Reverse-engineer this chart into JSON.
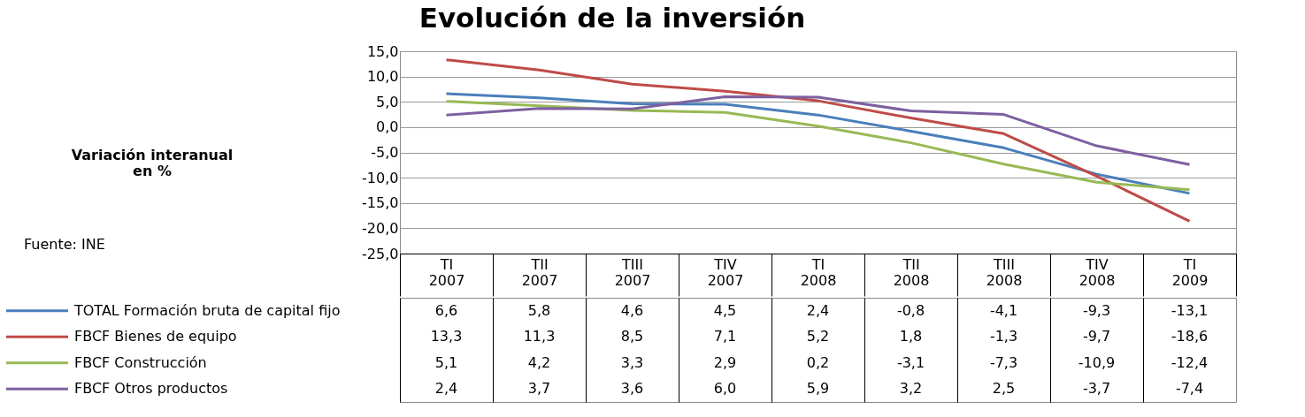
{
  "chart_data": {
    "type": "line",
    "title": "Evolución de la inversión",
    "annotations": [
      "Variación interanual en %",
      "Fuente: INE"
    ],
    "categories": [
      "TI 2007",
      "TII 2007",
      "TIII 2007",
      "TIV 2007",
      "TI 2008",
      "TII 2008",
      "TIII 2008",
      "TIV 2008",
      "TI 2009"
    ],
    "series": [
      {
        "name": "TOTAL Formación bruta de capital fijo",
        "color": "#4a7ebb",
        "values": [
          6.6,
          5.8,
          4.6,
          4.5,
          2.4,
          -0.8,
          -4.1,
          -9.3,
          -13.1
        ],
        "value_labels": [
          "6,6",
          "5,8",
          "4,6",
          "4,5",
          "2,4",
          "-0,8",
          "-4,1",
          "-9,3",
          "-13,1"
        ]
      },
      {
        "name": "FBCF Bienes de equipo",
        "color": "#be4b48",
        "values": [
          13.3,
          11.3,
          8.5,
          7.1,
          5.2,
          1.8,
          -1.3,
          -9.7,
          -18.6
        ],
        "value_labels": [
          "13,3",
          "11,3",
          "8,5",
          "7,1",
          "5,2",
          "1,8",
          "-1,3",
          "-9,7",
          "-18,6"
        ]
      },
      {
        "name": "FBCF Construcción",
        "color": "#98b954",
        "values": [
          5.1,
          4.2,
          3.3,
          2.9,
          0.2,
          -3.1,
          -7.3,
          -10.9,
          -12.4
        ],
        "value_labels": [
          "5,1",
          "4,2",
          "3,3",
          "2,9",
          "0,2",
          "-3,1",
          "-7,3",
          "-10,9",
          "-12,4"
        ]
      },
      {
        "name": "FBCF Otros productos",
        "color": "#7d60a0",
        "values": [
          2.4,
          3.7,
          3.6,
          6.0,
          5.9,
          3.2,
          2.5,
          -3.7,
          -7.4
        ],
        "value_labels": [
          "2,4",
          "3,7",
          "3,6",
          "6,0",
          "5,9",
          "3,2",
          "2,5",
          "-3,7",
          "-7,4"
        ]
      }
    ],
    "ylim": [
      -25,
      15
    ],
    "yticks": [
      {
        "value": -25,
        "label": "-25,0"
      },
      {
        "value": -20,
        "label": "-20,0"
      },
      {
        "value": -15,
        "label": "-15,0"
      },
      {
        "value": -10,
        "label": "-10,0"
      },
      {
        "value": -5,
        "label": "-5,0"
      },
      {
        "value": 0,
        "label": "0,0"
      },
      {
        "value": 5,
        "label": "5,0"
      },
      {
        "value": 10,
        "label": "10,0"
      },
      {
        "value": 15,
        "label": "15,0"
      }
    ],
    "grid": "y",
    "legend": "bottom",
    "marker": "none",
    "line_style": "solid"
  }
}
